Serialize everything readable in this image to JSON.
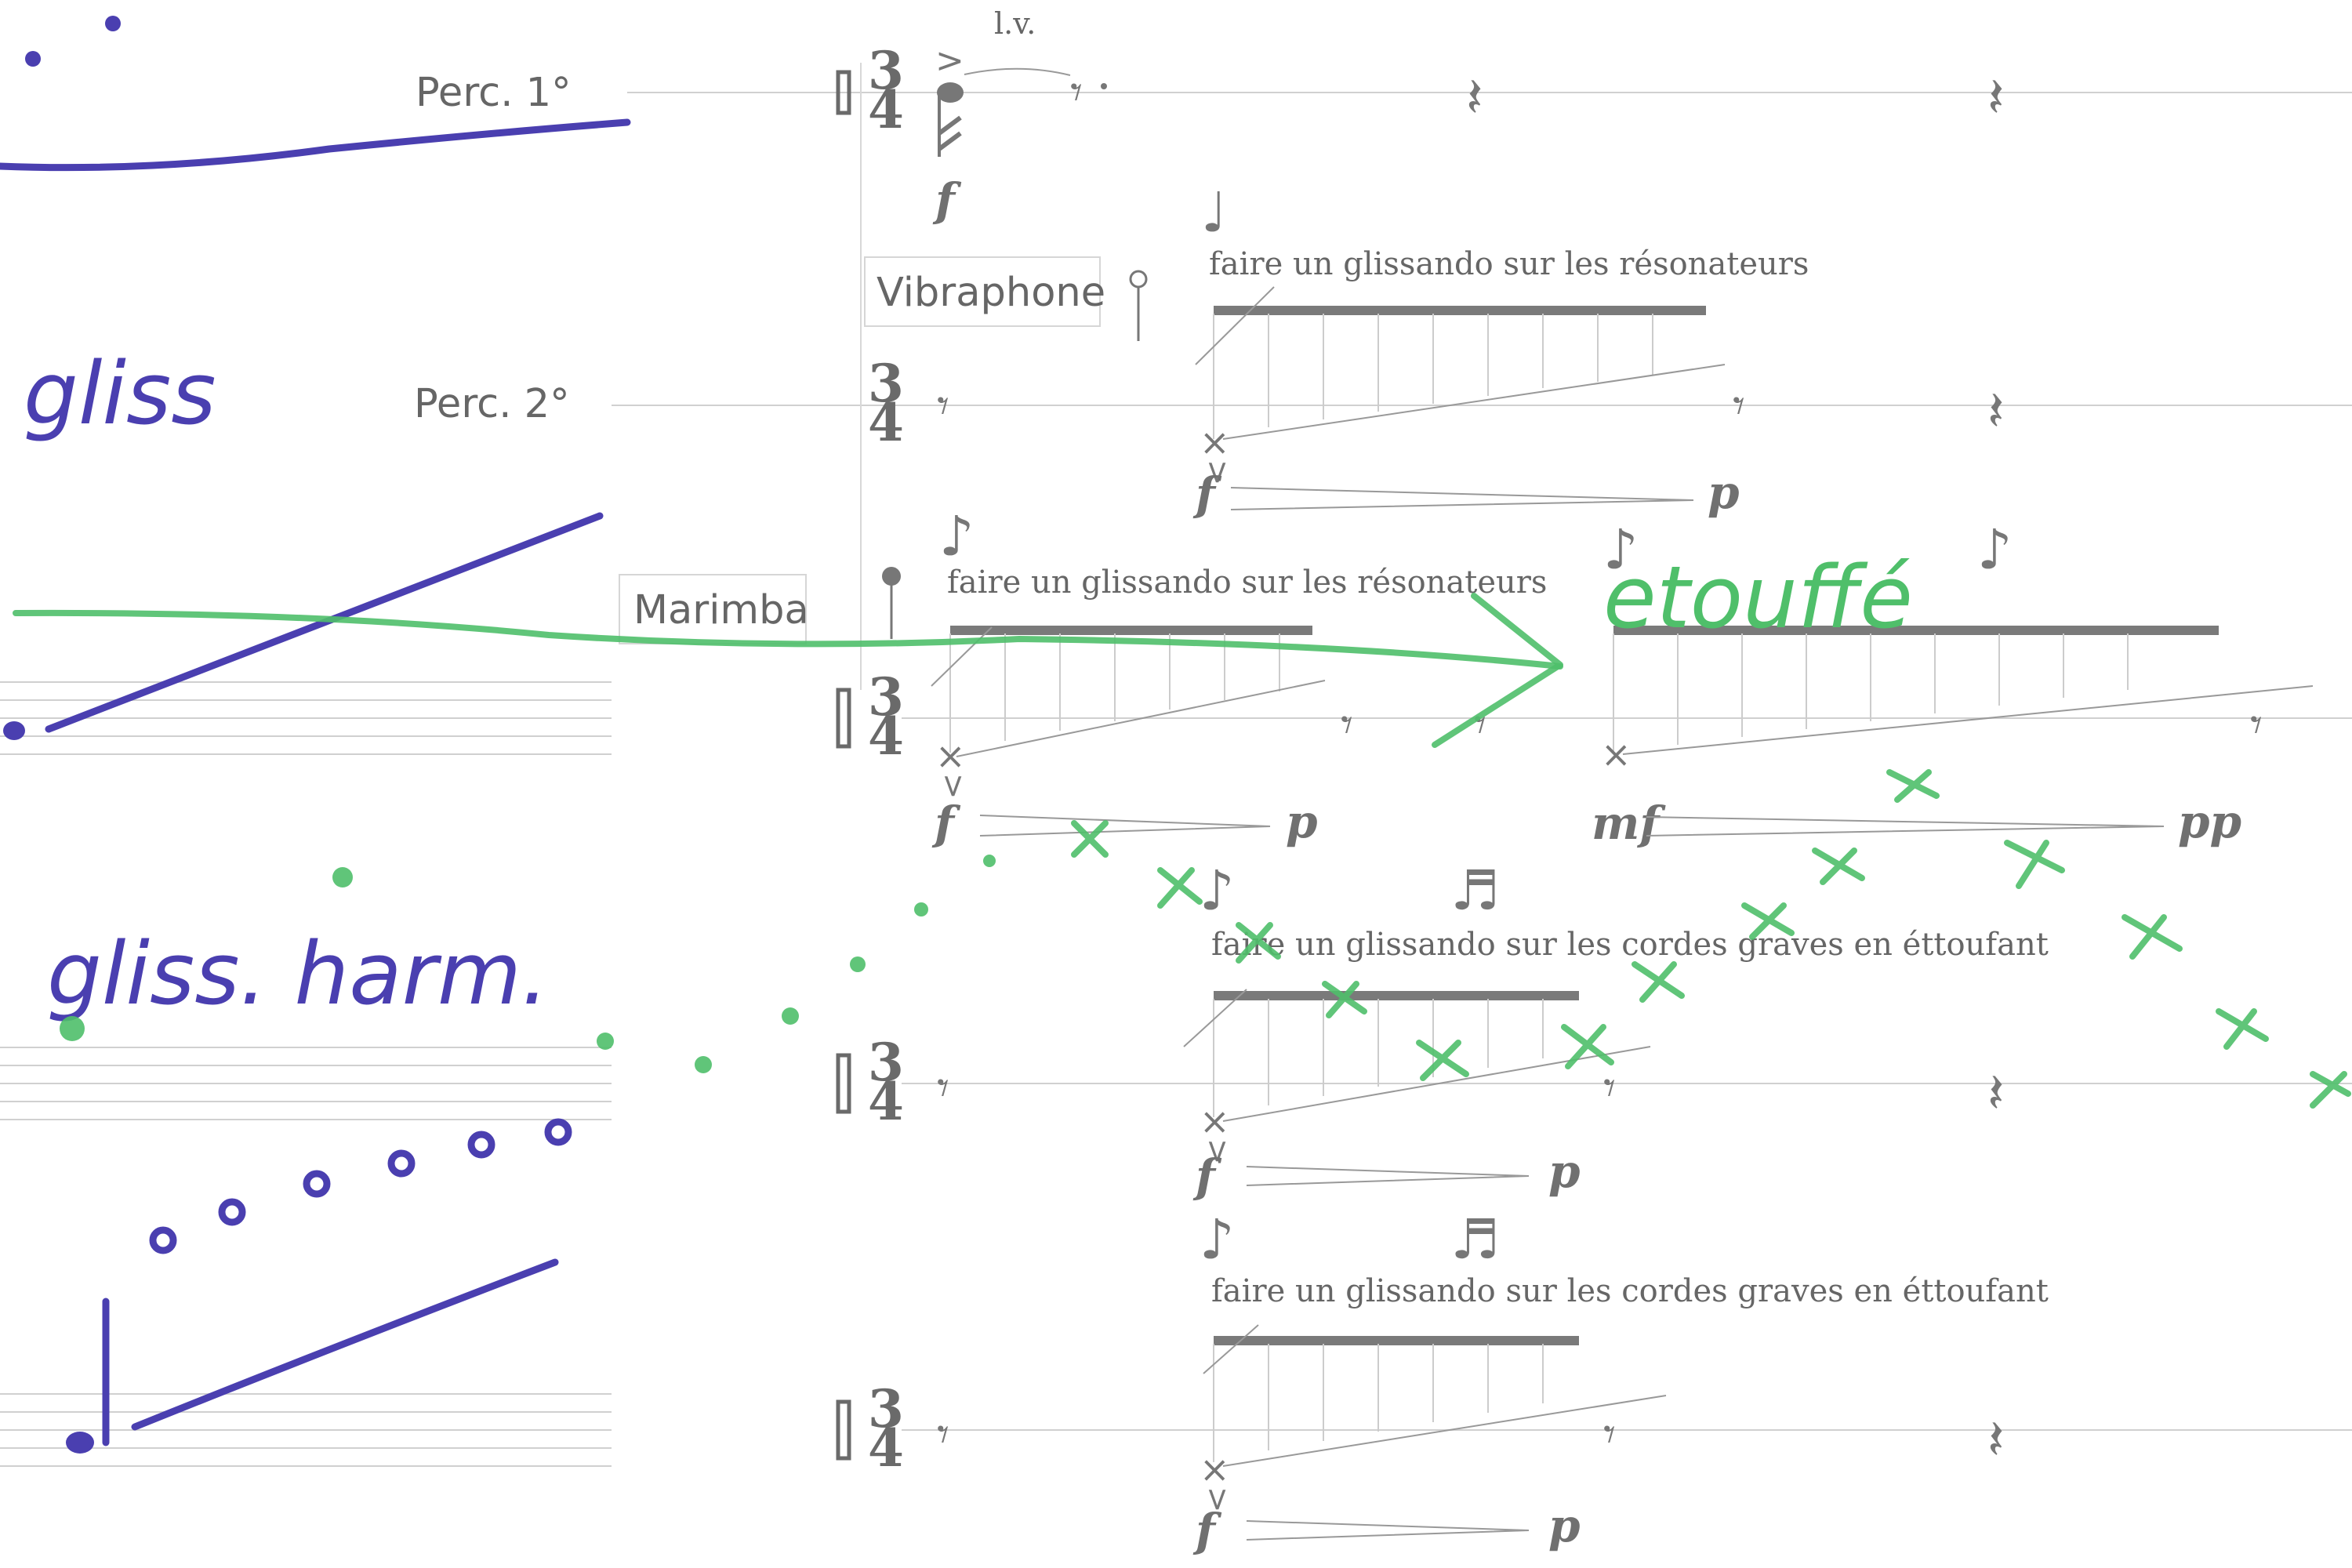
{
  "instruments": {
    "perc1": "Perc. 1°",
    "perc2": "Perc. 2°",
    "vibraphone": "Vibraphone",
    "marimba": "Marimba"
  },
  "time_signature": {
    "top": "3",
    "bottom": "4"
  },
  "markings": {
    "lv": "l.v.",
    "glissando_resonators": "faire un glissando sur les résonateurs",
    "glissando_strings": "faire un glissando sur les cordes graves en éttoufant"
  },
  "dynamics": {
    "f": "f",
    "p": "p",
    "mf": "mf",
    "pp": "pp"
  },
  "glyphs": {
    "quarter_note": "♩",
    "eighth_note": "♪",
    "sixteenth_note": "♬",
    "eighth_rest": "𝄾",
    "quarter_rest": "𝄽",
    "accent": ">",
    "x_head": "×"
  },
  "annotations": {
    "gliss": "gliss",
    "gliss_harm": "gliss. harm.",
    "etouffe": "etouffé"
  },
  "colors": {
    "annotation_blue": "#4a3fb0",
    "annotation_green": "#4fbf6a",
    "engraving_gray": "#6a6a6a"
  }
}
